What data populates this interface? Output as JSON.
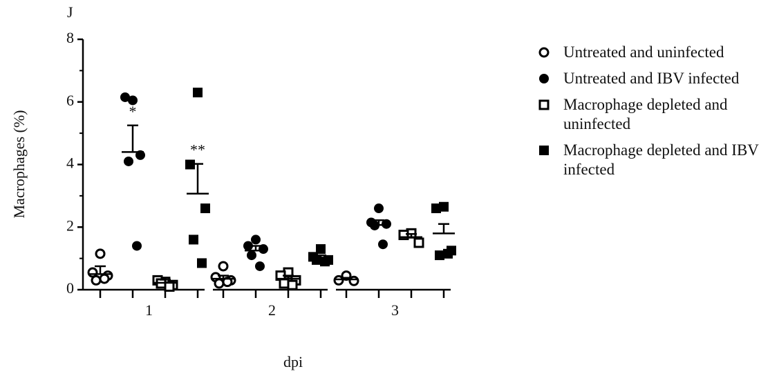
{
  "chart_data": {
    "type": "scatter",
    "panel_label": "J",
    "xlabel": "dpi",
    "ylabel": "Macrophages (%)",
    "categories": [
      "1",
      "2",
      "3"
    ],
    "ylim": [
      0,
      8
    ],
    "yticks": [
      0,
      2,
      4,
      6,
      8
    ],
    "yminorticks": [
      1,
      3,
      5,
      7
    ],
    "color": "#000000",
    "series": [
      {
        "name": "Untreated and uninfected",
        "marker": "circle",
        "filled": false,
        "values": [
          [
            1.15,
            0.55,
            0.45,
            0.3,
            0.35
          ],
          [
            0.75,
            0.4,
            0.3,
            0.2,
            0.25
          ],
          [
            0.45,
            0.3,
            0.28
          ]
        ],
        "means": [
          0.5,
          0.35,
          0.33
        ],
        "errors": [
          0.25,
          0.1,
          0.05
        ]
      },
      {
        "name": "Untreated and IBV infected",
        "marker": "circle",
        "filled": true,
        "values": [
          [
            6.05,
            6.15,
            4.3,
            4.1,
            1.4
          ],
          [
            1.6,
            1.4,
            1.3,
            1.1,
            0.75
          ],
          [
            2.6,
            2.15,
            2.1,
            2.05,
            1.45
          ]
        ],
        "means": [
          4.4,
          1.25,
          2.07
        ],
        "errors": [
          0.85,
          0.15,
          0.15
        ]
      },
      {
        "name": "Macrophage depleted and uninfected",
        "marker": "square",
        "filled": false,
        "values": [
          [
            0.25,
            0.3,
            0.15,
            0.2,
            0.1
          ],
          [
            0.55,
            0.45,
            0.3,
            0.2,
            0.15
          ],
          [
            1.8,
            1.75,
            1.5
          ]
        ],
        "means": [
          0.22,
          0.35,
          1.68
        ],
        "errors": [
          0.1,
          0.1,
          0.1
        ]
      },
      {
        "name": "Macrophage depleted and IBV infected",
        "marker": "square",
        "filled": true,
        "values": [
          [
            6.3,
            4.0,
            2.6,
            1.6,
            0.85
          ],
          [
            1.3,
            1.05,
            0.95,
            0.95,
            0.9
          ],
          [
            2.65,
            2.6,
            1.25,
            1.1,
            1.15
          ]
        ],
        "means": [
          3.07,
          1.0,
          1.8
        ],
        "errors": [
          0.95,
          0.1,
          0.3
        ]
      }
    ],
    "annotations": [
      {
        "text": "*",
        "category": 0,
        "series": 1
      },
      {
        "text": "**",
        "category": 0,
        "series": 3
      }
    ]
  }
}
